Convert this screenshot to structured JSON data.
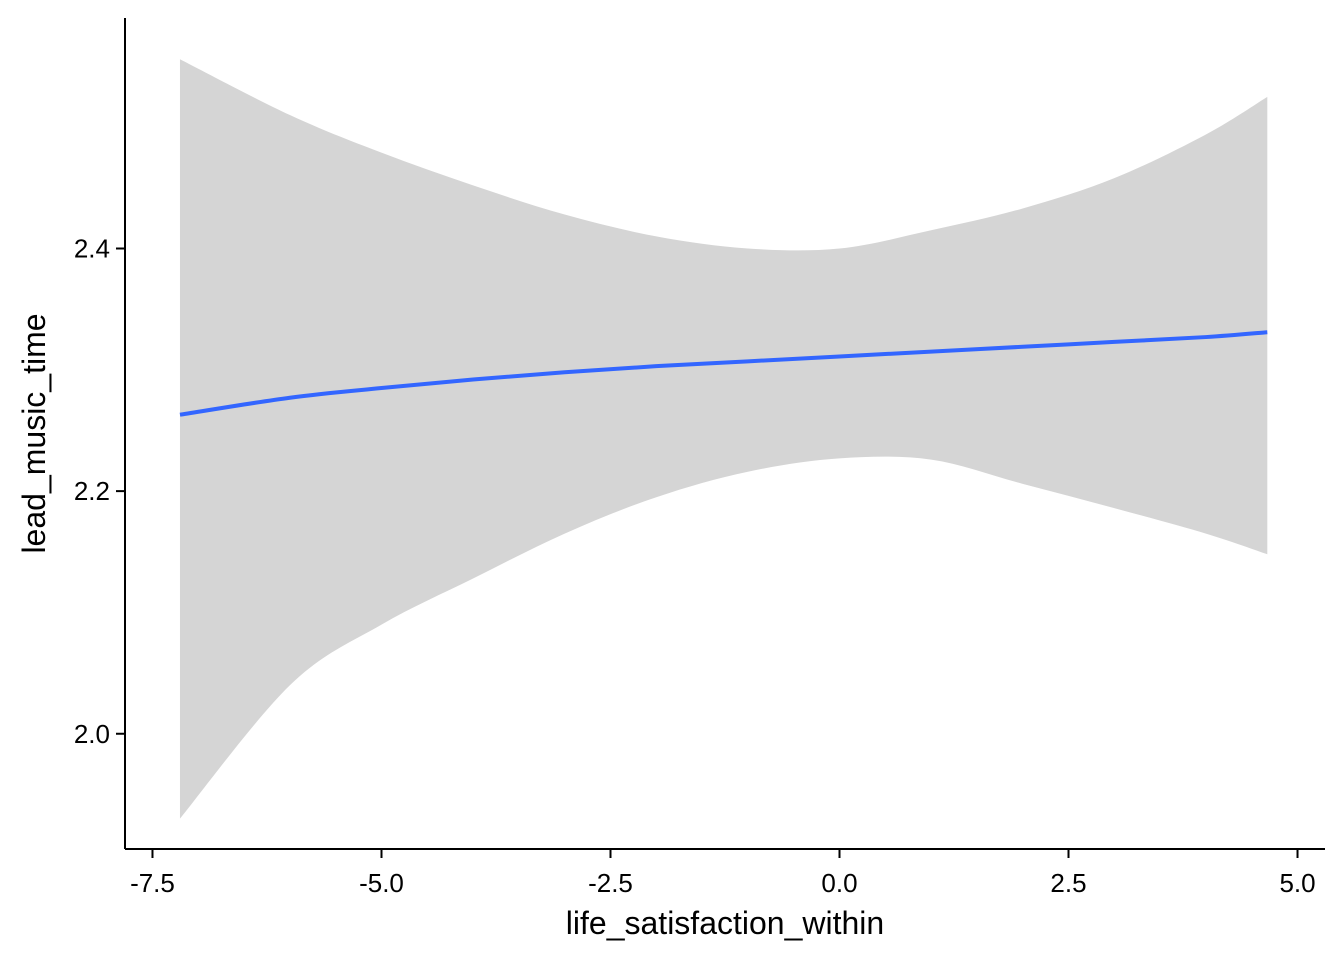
{
  "chart_data": {
    "type": "line",
    "title": "",
    "xlabel": "life_satisfaction_within",
    "ylabel": "lead_music_time",
    "xlim": [
      -7.8,
      5.3
    ],
    "ylim": [
      1.905,
      2.59
    ],
    "x_ticks": [
      -7.5,
      -5.0,
      -2.5,
      0.0,
      2.5,
      5.0
    ],
    "x_tick_labels": [
      "-7.5",
      "-5.0",
      "-2.5",
      "0.0",
      "2.5",
      "5.0"
    ],
    "y_ticks": [
      2.0,
      2.2,
      2.4
    ],
    "y_tick_labels": [
      "2.0",
      "2.2",
      "2.4"
    ],
    "grid": false,
    "legend": "none",
    "colors": {
      "line": "#3366FF",
      "ribbon": "#D5D5D5",
      "axis": "#000000"
    },
    "series": [
      {
        "x": [
          -7.2,
          -6.0,
          -5.0,
          -4.0,
          -3.0,
          -2.0,
          -1.0,
          0.0,
          1.0,
          2.0,
          3.0,
          4.0,
          4.67
        ],
        "y": [
          2.263,
          2.277,
          2.285,
          2.292,
          2.298,
          2.303,
          2.307,
          2.311,
          2.315,
          2.319,
          2.323,
          2.327,
          2.331
        ],
        "ymin": [
          1.93,
          2.04,
          2.09,
          2.128,
          2.165,
          2.195,
          2.216,
          2.227,
          2.226,
          2.206,
          2.186,
          2.165,
          2.148
        ],
        "ymax": [
          2.556,
          2.51,
          2.479,
          2.452,
          2.428,
          2.41,
          2.4,
          2.4,
          2.415,
          2.433,
          2.458,
          2.494,
          2.525
        ]
      }
    ]
  }
}
